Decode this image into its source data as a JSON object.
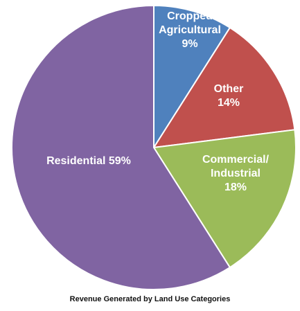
{
  "chart_data": {
    "type": "pie",
    "title": "Revenue Generated by Land Use Categories",
    "start_angle_deg": 0,
    "direction": "clockwise",
    "slices": [
      {
        "lines": [
          "Cropped",
          "Agricultural",
          "9%"
        ],
        "value": 9,
        "color": "#4F81BD"
      },
      {
        "lines": [
          "Other",
          "14%"
        ],
        "value": 14,
        "color": "#C0504D"
      },
      {
        "lines": [
          "Commercial/",
          "Industrial",
          "18%"
        ],
        "value": 18,
        "color": "#9BBB59"
      },
      {
        "lines": [
          "Residential  59%"
        ],
        "value": 59,
        "color": "#8064A2"
      }
    ]
  }
}
